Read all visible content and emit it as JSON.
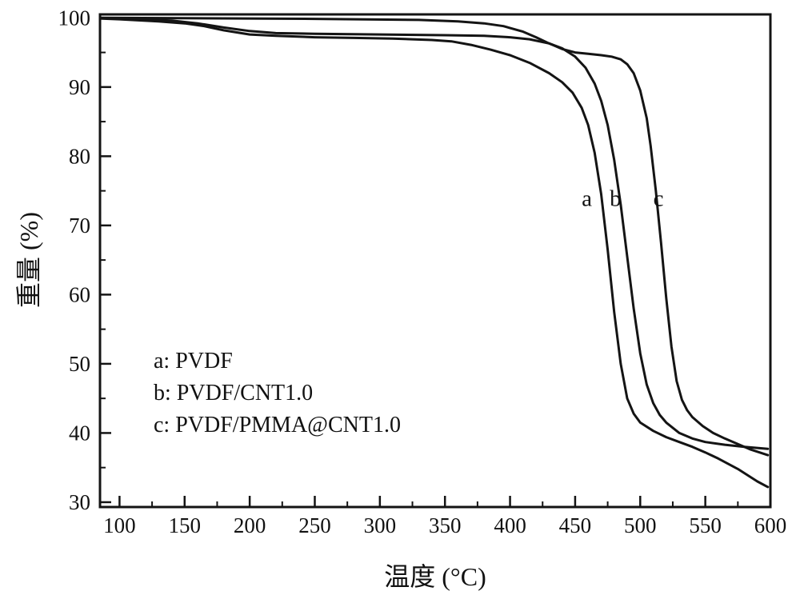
{
  "chart_data": {
    "type": "line",
    "title": "",
    "xlabel": "温度 (°C)",
    "ylabel": "重量 (%)",
    "xlim": [
      85,
      600
    ],
    "ylim": [
      29.3,
      100.5
    ],
    "x_ticks": [
      100,
      150,
      200,
      250,
      300,
      350,
      400,
      450,
      500,
      550,
      600
    ],
    "x_minor_step": 25,
    "y_ticks": [
      30,
      40,
      50,
      60,
      70,
      80,
      90,
      100
    ],
    "y_minor_step": 5,
    "grid": false,
    "legend_position": "lower-left-inside",
    "line_color": "#141414",
    "legend": [
      "a: PVDF",
      "b: PVDF/CNT1.0",
      "c: PVDF/PMMA@CNT1.0"
    ],
    "series": [
      {
        "name": "a: PVDF",
        "label": "a",
        "label_pos": [
          459,
          72.8
        ],
        "points": [
          [
            85,
            99.9
          ],
          [
            100,
            99.8
          ],
          [
            130,
            99.5
          ],
          [
            150,
            99.2
          ],
          [
            165,
            98.8
          ],
          [
            180,
            98.2
          ],
          [
            200,
            97.6
          ],
          [
            220,
            97.4
          ],
          [
            250,
            97.2
          ],
          [
            280,
            97.1
          ],
          [
            310,
            97.0
          ],
          [
            340,
            96.8
          ],
          [
            355,
            96.6
          ],
          [
            370,
            96.1
          ],
          [
            385,
            95.4
          ],
          [
            400,
            94.6
          ],
          [
            415,
            93.5
          ],
          [
            430,
            92.0
          ],
          [
            440,
            90.7
          ],
          [
            448,
            89.2
          ],
          [
            455,
            87.0
          ],
          [
            460,
            84.5
          ],
          [
            465,
            80.5
          ],
          [
            470,
            74.5
          ],
          [
            475,
            66.5
          ],
          [
            480,
            57.5
          ],
          [
            485,
            50.0
          ],
          [
            490,
            45.0
          ],
          [
            495,
            42.8
          ],
          [
            500,
            41.5
          ],
          [
            510,
            40.3
          ],
          [
            520,
            39.4
          ],
          [
            530,
            38.7
          ],
          [
            540,
            38.0
          ],
          [
            550,
            37.2
          ],
          [
            560,
            36.3
          ],
          [
            575,
            34.8
          ],
          [
            590,
            33.0
          ],
          [
            598,
            32.2
          ]
        ]
      },
      {
        "name": "b: PVDF/CNT1.0",
        "label": "b",
        "label_pos": [
          481,
          72.8
        ],
        "points": [
          [
            85,
            100
          ],
          [
            100,
            99.9
          ],
          [
            140,
            99.6
          ],
          [
            160,
            99.2
          ],
          [
            180,
            98.6
          ],
          [
            200,
            98.1
          ],
          [
            220,
            97.8
          ],
          [
            250,
            97.7
          ],
          [
            300,
            97.6
          ],
          [
            350,
            97.5
          ],
          [
            380,
            97.4
          ],
          [
            400,
            97.2
          ],
          [
            415,
            96.9
          ],
          [
            430,
            96.3
          ],
          [
            440,
            95.6
          ],
          [
            450,
            94.4
          ],
          [
            458,
            92.8
          ],
          [
            465,
            90.5
          ],
          [
            470,
            88.0
          ],
          [
            475,
            84.5
          ],
          [
            480,
            79.5
          ],
          [
            485,
            73.0
          ],
          [
            490,
            65.5
          ],
          [
            495,
            58.0
          ],
          [
            500,
            51.5
          ],
          [
            505,
            47.0
          ],
          [
            510,
            44.3
          ],
          [
            515,
            42.6
          ],
          [
            520,
            41.5
          ],
          [
            530,
            40.0
          ],
          [
            540,
            39.2
          ],
          [
            550,
            38.7
          ],
          [
            565,
            38.3
          ],
          [
            580,
            38.0
          ],
          [
            598,
            37.7
          ]
        ]
      },
      {
        "name": "c: PVDF/PMMA@CNT1.0",
        "label": "c",
        "label_pos": [
          514,
          72.8
        ],
        "points": [
          [
            85,
            100
          ],
          [
            150,
            99.95
          ],
          [
            250,
            99.85
          ],
          [
            330,
            99.7
          ],
          [
            360,
            99.5
          ],
          [
            380,
            99.2
          ],
          [
            395,
            98.8
          ],
          [
            410,
            98.0
          ],
          [
            420,
            97.2
          ],
          [
            430,
            96.3
          ],
          [
            440,
            95.5
          ],
          [
            450,
            95.0
          ],
          [
            460,
            94.8
          ],
          [
            470,
            94.6
          ],
          [
            478,
            94.4
          ],
          [
            485,
            94.0
          ],
          [
            490,
            93.3
          ],
          [
            495,
            92.0
          ],
          [
            500,
            89.5
          ],
          [
            505,
            85.5
          ],
          [
            508,
            81.5
          ],
          [
            512,
            75.0
          ],
          [
            516,
            67.5
          ],
          [
            520,
            59.5
          ],
          [
            524,
            52.5
          ],
          [
            528,
            47.5
          ],
          [
            532,
            44.8
          ],
          [
            536,
            43.3
          ],
          [
            540,
            42.3
          ],
          [
            548,
            41.0
          ],
          [
            556,
            40.0
          ],
          [
            565,
            39.2
          ],
          [
            575,
            38.4
          ],
          [
            585,
            37.6
          ],
          [
            598,
            36.8
          ]
        ]
      }
    ]
  }
}
